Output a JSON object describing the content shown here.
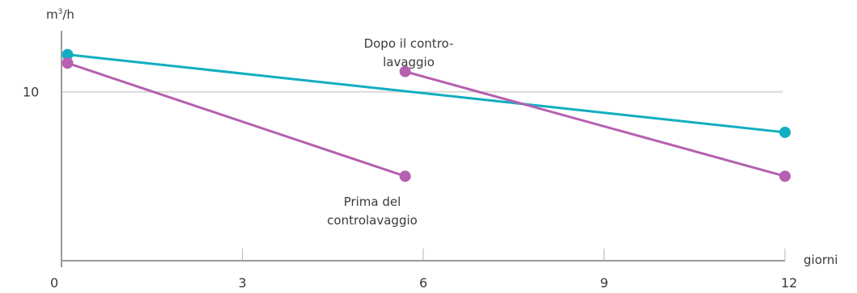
{
  "chart_data": {
    "type": "line",
    "ylabel_base": "m",
    "ylabel_sup": "3",
    "ylabel_rest": "/h",
    "xlabel": "giorni",
    "xlim": [
      0,
      12
    ],
    "ylim": [
      0,
      14
    ],
    "x_ticks": [
      0,
      3,
      6,
      9,
      12
    ],
    "y_ticks": [
      10
    ],
    "grid": "horizontal at 10",
    "colors": {
      "teal": "#12aec1",
      "purple": "#b560b0",
      "axis": "#9a9a9a",
      "grid": "#d9d9d9"
    },
    "series": [
      {
        "color": "#12aec1",
        "points": [
          [
            0.1,
            12.2
          ],
          [
            12,
            7.6
          ]
        ]
      },
      {
        "color": "#b560b0",
        "points": [
          [
            0.1,
            11.7
          ],
          [
            5.7,
            5.0
          ]
        ]
      },
      {
        "color": "#b560b0",
        "points": [
          [
            5.7,
            11.2
          ],
          [
            12,
            5.0
          ]
        ]
      }
    ],
    "annotations": [
      {
        "id": "after",
        "lines": [
          "Dopo il contro-",
          "lavaggio"
        ]
      },
      {
        "id": "before",
        "lines": [
          "Prima del",
          "controlavaggio"
        ]
      }
    ]
  }
}
